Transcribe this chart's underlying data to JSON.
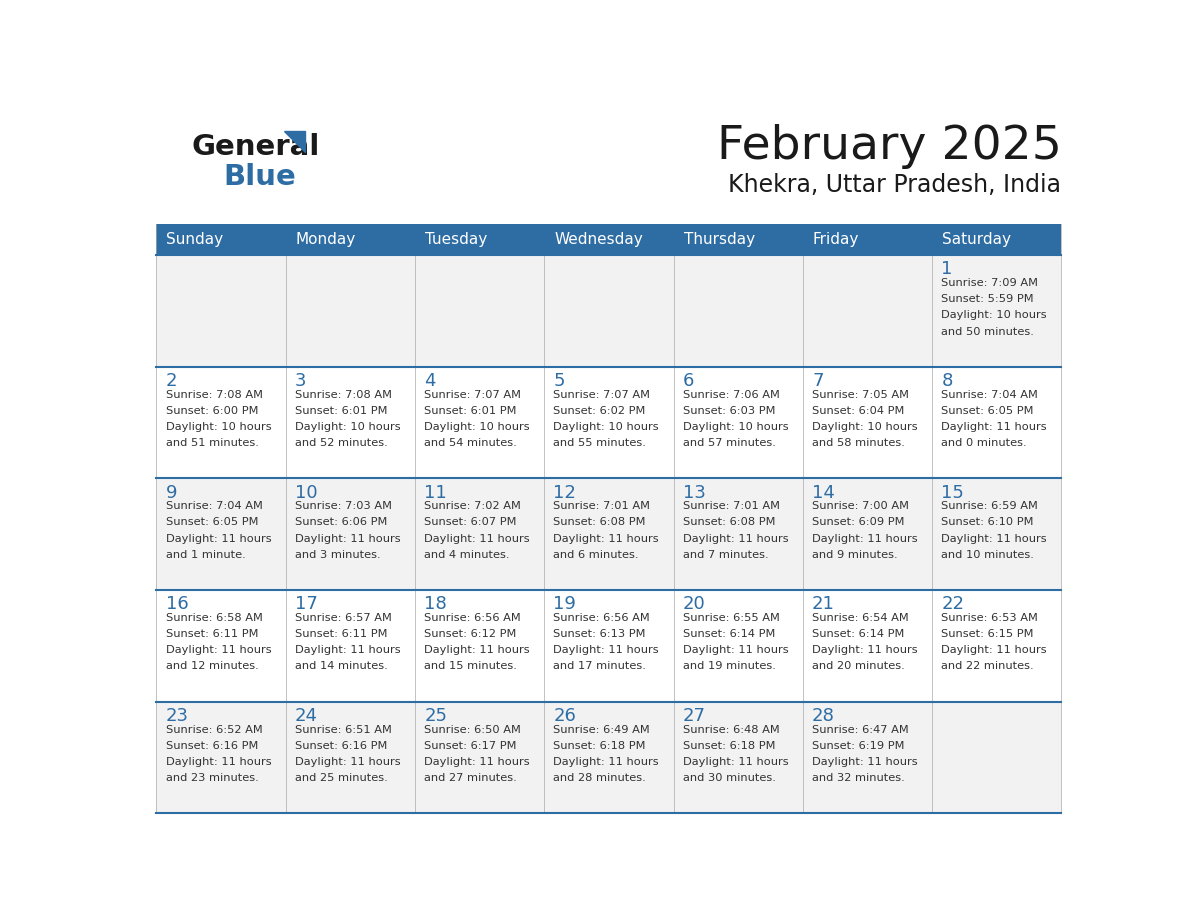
{
  "title": "February 2025",
  "subtitle": "Khekra, Uttar Pradesh, India",
  "header_bg": "#2E6DA4",
  "header_text_color": "#FFFFFF",
  "day_names": [
    "Sunday",
    "Monday",
    "Tuesday",
    "Wednesday",
    "Thursday",
    "Friday",
    "Saturday"
  ],
  "cell_bg_odd": "#F2F2F2",
  "cell_bg_even": "#FFFFFF",
  "text_color": "#333333",
  "day_num_color": "#2E6DA4",
  "calendar": [
    [
      null,
      null,
      null,
      null,
      null,
      null,
      {
        "day": 1,
        "sunrise": "7:09 AM",
        "sunset": "5:59 PM",
        "daylight": "10 hours\nand 50 minutes."
      }
    ],
    [
      {
        "day": 2,
        "sunrise": "7:08 AM",
        "sunset": "6:00 PM",
        "daylight": "10 hours\nand 51 minutes."
      },
      {
        "day": 3,
        "sunrise": "7:08 AM",
        "sunset": "6:01 PM",
        "daylight": "10 hours\nand 52 minutes."
      },
      {
        "day": 4,
        "sunrise": "7:07 AM",
        "sunset": "6:01 PM",
        "daylight": "10 hours\nand 54 minutes."
      },
      {
        "day": 5,
        "sunrise": "7:07 AM",
        "sunset": "6:02 PM",
        "daylight": "10 hours\nand 55 minutes."
      },
      {
        "day": 6,
        "sunrise": "7:06 AM",
        "sunset": "6:03 PM",
        "daylight": "10 hours\nand 57 minutes."
      },
      {
        "day": 7,
        "sunrise": "7:05 AM",
        "sunset": "6:04 PM",
        "daylight": "10 hours\nand 58 minutes."
      },
      {
        "day": 8,
        "sunrise": "7:04 AM",
        "sunset": "6:05 PM",
        "daylight": "11 hours\nand 0 minutes."
      }
    ],
    [
      {
        "day": 9,
        "sunrise": "7:04 AM",
        "sunset": "6:05 PM",
        "daylight": "11 hours\nand 1 minute."
      },
      {
        "day": 10,
        "sunrise": "7:03 AM",
        "sunset": "6:06 PM",
        "daylight": "11 hours\nand 3 minutes."
      },
      {
        "day": 11,
        "sunrise": "7:02 AM",
        "sunset": "6:07 PM",
        "daylight": "11 hours\nand 4 minutes."
      },
      {
        "day": 12,
        "sunrise": "7:01 AM",
        "sunset": "6:08 PM",
        "daylight": "11 hours\nand 6 minutes."
      },
      {
        "day": 13,
        "sunrise": "7:01 AM",
        "sunset": "6:08 PM",
        "daylight": "11 hours\nand 7 minutes."
      },
      {
        "day": 14,
        "sunrise": "7:00 AM",
        "sunset": "6:09 PM",
        "daylight": "11 hours\nand 9 minutes."
      },
      {
        "day": 15,
        "sunrise": "6:59 AM",
        "sunset": "6:10 PM",
        "daylight": "11 hours\nand 10 minutes."
      }
    ],
    [
      {
        "day": 16,
        "sunrise": "6:58 AM",
        "sunset": "6:11 PM",
        "daylight": "11 hours\nand 12 minutes."
      },
      {
        "day": 17,
        "sunrise": "6:57 AM",
        "sunset": "6:11 PM",
        "daylight": "11 hours\nand 14 minutes."
      },
      {
        "day": 18,
        "sunrise": "6:56 AM",
        "sunset": "6:12 PM",
        "daylight": "11 hours\nand 15 minutes."
      },
      {
        "day": 19,
        "sunrise": "6:56 AM",
        "sunset": "6:13 PM",
        "daylight": "11 hours\nand 17 minutes."
      },
      {
        "day": 20,
        "sunrise": "6:55 AM",
        "sunset": "6:14 PM",
        "daylight": "11 hours\nand 19 minutes."
      },
      {
        "day": 21,
        "sunrise": "6:54 AM",
        "sunset": "6:14 PM",
        "daylight": "11 hours\nand 20 minutes."
      },
      {
        "day": 22,
        "sunrise": "6:53 AM",
        "sunset": "6:15 PM",
        "daylight": "11 hours\nand 22 minutes."
      }
    ],
    [
      {
        "day": 23,
        "sunrise": "6:52 AM",
        "sunset": "6:16 PM",
        "daylight": "11 hours\nand 23 minutes."
      },
      {
        "day": 24,
        "sunrise": "6:51 AM",
        "sunset": "6:16 PM",
        "daylight": "11 hours\nand 25 minutes."
      },
      {
        "day": 25,
        "sunrise": "6:50 AM",
        "sunset": "6:17 PM",
        "daylight": "11 hours\nand 27 minutes."
      },
      {
        "day": 26,
        "sunrise": "6:49 AM",
        "sunset": "6:18 PM",
        "daylight": "11 hours\nand 28 minutes."
      },
      {
        "day": 27,
        "sunrise": "6:48 AM",
        "sunset": "6:18 PM",
        "daylight": "11 hours\nand 30 minutes."
      },
      {
        "day": 28,
        "sunrise": "6:47 AM",
        "sunset": "6:19 PM",
        "daylight": "11 hours\nand 32 minutes."
      },
      null
    ]
  ]
}
